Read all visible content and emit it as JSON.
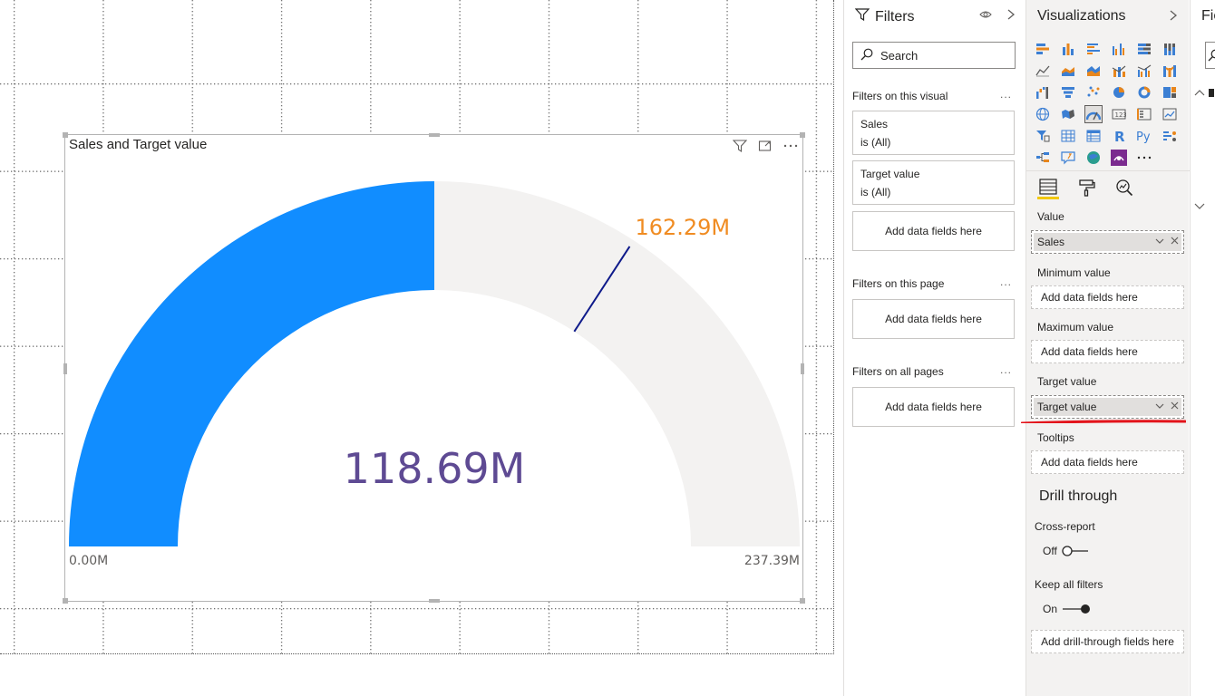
{
  "visual": {
    "title": "Sales and Target value",
    "gauge": {
      "value": 118.69,
      "value_label": "118.69M",
      "min": 0,
      "min_label": "0.00M",
      "max": 237.39,
      "max_label": "237.39M",
      "target": 162.29,
      "target_label": "162.29M",
      "fill_color": "#118dff",
      "track_color": "#f3f2f1",
      "target_color": "#0e1a8a",
      "value_text_color": "#5e4a93",
      "target_text_color": "#f08c22"
    }
  },
  "filters": {
    "title": "Filters",
    "search_placeholder": "Search",
    "on_this_visual": "Filters on this visual",
    "cards": [
      {
        "name": "Sales",
        "state": "is (All)"
      },
      {
        "name": "Target value",
        "state": "is (All)"
      }
    ],
    "add_fields": "Add data fields here",
    "on_this_page": "Filters on this page",
    "on_all_pages": "Filters on all pages",
    "more": "..."
  },
  "visualizations": {
    "title": "Visualizations",
    "wells": {
      "value_label": "Value",
      "value_field": "Sales",
      "min_label": "Minimum value",
      "min_placeholder": "Add data fields here",
      "max_label": "Maximum value",
      "max_placeholder": "Add data fields here",
      "target_label": "Target value",
      "target_field": "Target value",
      "tooltips_label": "Tooltips",
      "tooltips_placeholder": "Add data fields here"
    },
    "drill": {
      "title": "Drill through",
      "cross_report_label": "Cross-report",
      "cross_report_state": "Off",
      "keep_filters_label": "Keep all filters",
      "keep_filters_state": "On",
      "add_drill": "Add drill-through fields here"
    }
  },
  "fields_pane": {
    "title": "Fie"
  },
  "colors": {
    "accent_yellow": "#f2c811",
    "highlight_red": "#e3141b"
  }
}
